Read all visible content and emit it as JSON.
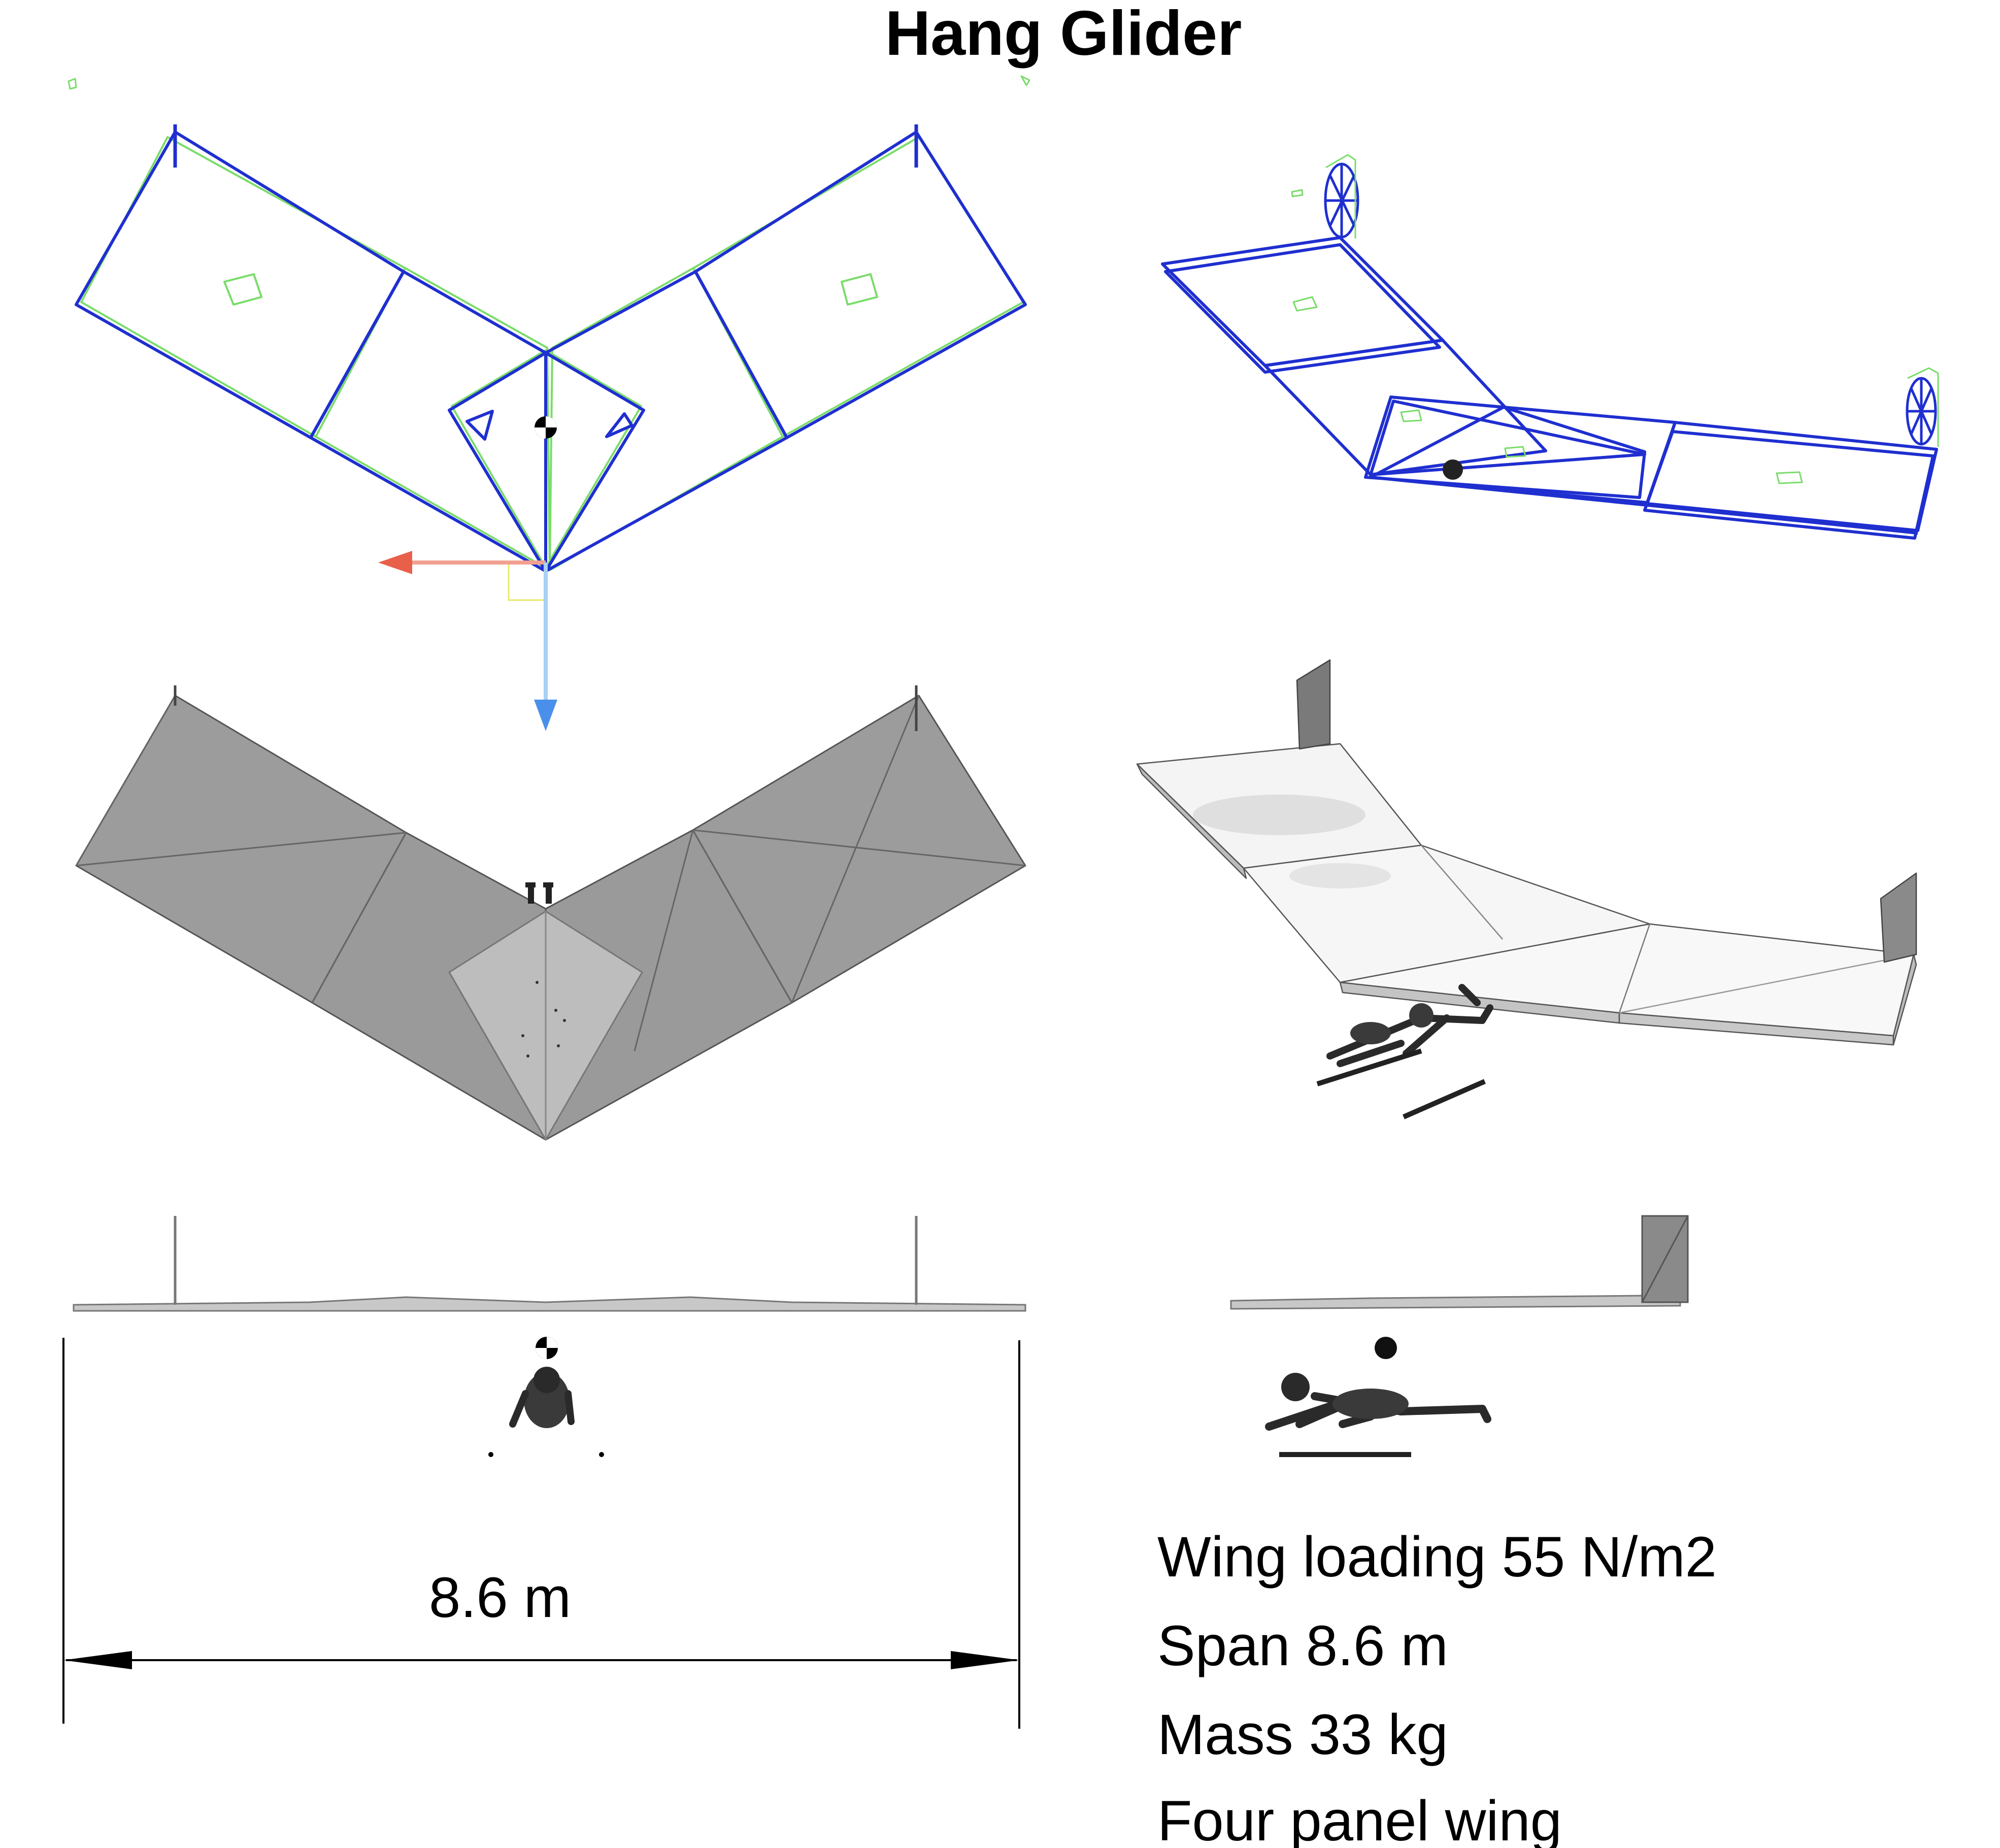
{
  "title": "Hang Glider",
  "dimension": {
    "label": "8.6 m"
  },
  "specs": [
    "Wing loading 55 N/m2",
    "Span 8.6 m",
    "Mass 33 kg",
    "Four panel wing"
  ],
  "colors": {
    "wireframe": "#1f2fd0",
    "wireframe_outline": "#7adc6a",
    "panel_fill": "#9a9a9a",
    "panel_light": "#f4f4f4",
    "axis_x": "#e8604a",
    "axis_y": "#6aa8ea",
    "pilot": "#2a2a2a"
  }
}
